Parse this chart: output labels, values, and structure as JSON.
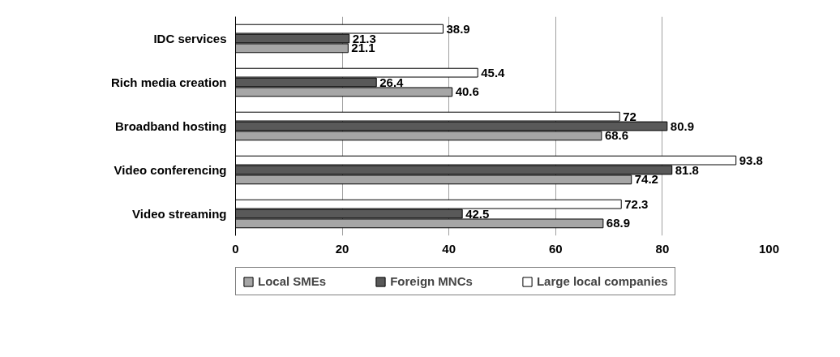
{
  "chart_data": {
    "type": "bar",
    "orientation": "horizontal",
    "categories": [
      "IDC services",
      "Rich media creation",
      "Broadband hosting",
      "Video conferencing",
      "Video streaming"
    ],
    "series": [
      {
        "name": "Local SMEs",
        "color": "#a6a6a6",
        "values": [
          21.1,
          40.6,
          68.6,
          74.2,
          68.9
        ]
      },
      {
        "name": "Foreign MNCs",
        "color": "#595959",
        "values": [
          21.3,
          26.4,
          80.9,
          81.8,
          42.5
        ]
      },
      {
        "name": "Large local companies",
        "color": "#ffffff",
        "values": [
          38.9,
          45.4,
          72,
          93.8,
          72.3
        ]
      }
    ],
    "xlim": [
      0,
      100
    ],
    "xticks": [
      0,
      20,
      40,
      60,
      80,
      100
    ],
    "grid": "x",
    "legend": "bottom",
    "data_labels": true
  }
}
